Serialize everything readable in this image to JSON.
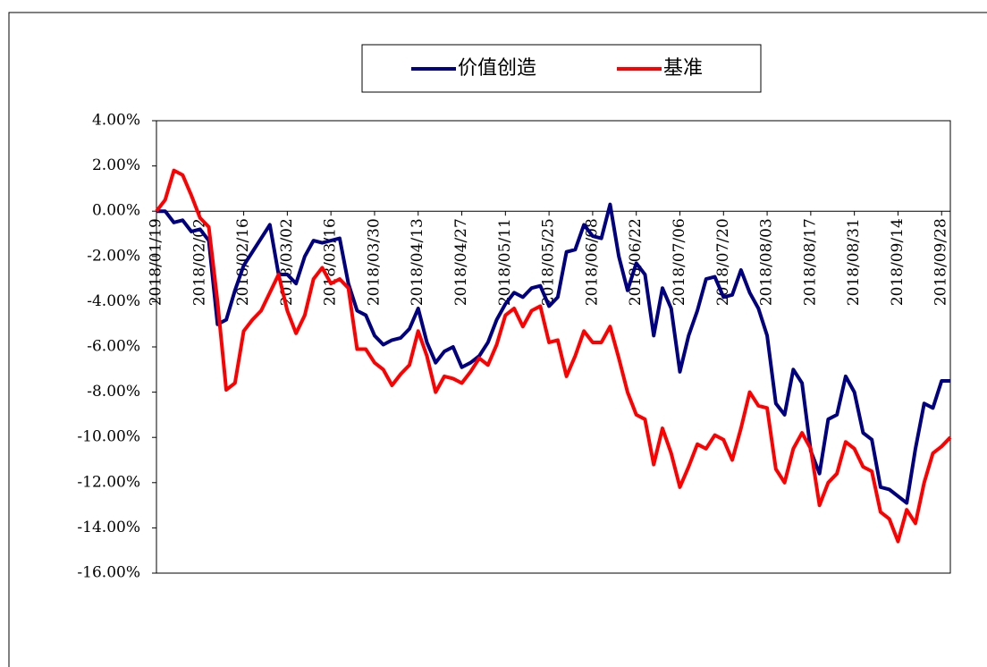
{
  "chart_data": {
    "type": "line",
    "categories": [
      "2018/01/19",
      null,
      null,
      null,
      null,
      "2018/02/02",
      null,
      null,
      null,
      null,
      "2018/02/16",
      null,
      null,
      null,
      null,
      "2018/03/02",
      null,
      null,
      null,
      null,
      "2018/03/16",
      null,
      null,
      null,
      null,
      "2018/03/30",
      null,
      null,
      null,
      null,
      "2018/04/13",
      null,
      null,
      null,
      null,
      "2018/04/27",
      null,
      null,
      null,
      null,
      "2018/05/11",
      null,
      null,
      null,
      null,
      "2018/05/25",
      null,
      null,
      null,
      null,
      "2018/06/08",
      null,
      null,
      null,
      null,
      "2018/06/22",
      null,
      null,
      null,
      null,
      "2018/07/06",
      null,
      null,
      null,
      null,
      "2018/07/20",
      null,
      null,
      null,
      null,
      "2018/08/03",
      null,
      null,
      null,
      null,
      "2018/08/17",
      null,
      null,
      null,
      null,
      "2018/08/31",
      null,
      null,
      null,
      null,
      "2018/09/14",
      null,
      null,
      null,
      null,
      "2018/09/28",
      null
    ],
    "series": [
      {
        "name": "价值创造",
        "color": "#000080",
        "values": [
          0.0,
          0.0,
          -0.5,
          -0.4,
          -0.9,
          -0.8,
          -1.3,
          -5.0,
          -4.8,
          -3.5,
          -2.4,
          -1.8,
          -1.2,
          -0.6,
          -2.8,
          -2.8,
          -3.2,
          -2.0,
          -1.3,
          -1.4,
          -1.3,
          -1.2,
          -3.2,
          -4.4,
          -4.6,
          -5.5,
          -5.9,
          -5.7,
          -5.6,
          -5.2,
          -4.3,
          -5.8,
          -6.7,
          -6.2,
          -6.0,
          -6.9,
          -6.7,
          -6.4,
          -5.8,
          -4.8,
          -4.1,
          -3.6,
          -3.8,
          -3.4,
          -3.3,
          -4.2,
          -3.8,
          -1.8,
          -1.7,
          -0.6,
          -1.1,
          -1.2,
          0.3,
          -2.0,
          -3.5,
          -2.3,
          -2.8,
          -5.5,
          -3.4,
          -4.3,
          -7.1,
          -5.5,
          -4.4,
          -3.0,
          -2.9,
          -3.8,
          -3.7,
          -2.6,
          -3.6,
          -4.3,
          -5.5,
          -8.5,
          -9.0,
          -7.0,
          -7.6,
          -10.6,
          -11.6,
          -9.2,
          -9.0,
          -7.3,
          -8.0,
          -9.8,
          -10.1,
          -12.2,
          -12.3,
          -12.6,
          -12.9,
          -10.5,
          -8.5,
          -8.7,
          -7.5,
          -7.5
        ]
      },
      {
        "name": "基准",
        "color": "#ff0000",
        "values": [
          0.0,
          0.5,
          1.8,
          1.6,
          0.7,
          -0.3,
          -0.7,
          -4.0,
          -7.9,
          -7.6,
          -5.3,
          -4.8,
          -4.4,
          -3.6,
          -2.8,
          -4.4,
          -5.4,
          -4.6,
          -3.0,
          -2.5,
          -3.2,
          -3.0,
          -3.4,
          -6.1,
          -6.1,
          -6.7,
          -7.0,
          -7.7,
          -7.2,
          -6.8,
          -5.3,
          -6.4,
          -8.0,
          -7.3,
          -7.4,
          -7.6,
          -7.1,
          -6.5,
          -6.8,
          -5.9,
          -4.6,
          -4.3,
          -5.1,
          -4.4,
          -4.2,
          -5.8,
          -5.7,
          -7.3,
          -6.4,
          -5.3,
          -5.8,
          -5.8,
          -5.1,
          -6.5,
          -8.0,
          -9.0,
          -9.2,
          -11.2,
          -9.6,
          -10.7,
          -12.2,
          -11.3,
          -10.3,
          -10.5,
          -9.9,
          -10.1,
          -11.0,
          -9.6,
          -8.0,
          -8.6,
          -8.7,
          -11.4,
          -12.0,
          -10.5,
          -9.8,
          -10.5,
          -13.0,
          -12.0,
          -11.6,
          -10.2,
          -10.5,
          -11.3,
          -11.5,
          -13.3,
          -13.6,
          -14.6,
          -13.2,
          -13.8,
          -12.0,
          -10.7,
          -10.4,
          -10.0
        ]
      }
    ],
    "ylim": [
      -16,
      4
    ],
    "yticks": [
      {
        "value": 4,
        "label": "4.00%"
      },
      {
        "value": 2,
        "label": "2.00%"
      },
      {
        "value": 0,
        "label": "0.00%"
      },
      {
        "value": -2,
        "label": "-2.00%"
      },
      {
        "value": -4,
        "label": "-4.00%"
      },
      {
        "value": -6,
        "label": "-6.00%"
      },
      {
        "value": -8,
        "label": "-8.00%"
      },
      {
        "value": -10,
        "label": "-10.00%"
      },
      {
        "value": -12,
        "label": "-12.00%"
      },
      {
        "value": -14,
        "label": "-14.00%"
      },
      {
        "value": -16,
        "label": "-16.00%"
      }
    ],
    "legend": "top"
  }
}
